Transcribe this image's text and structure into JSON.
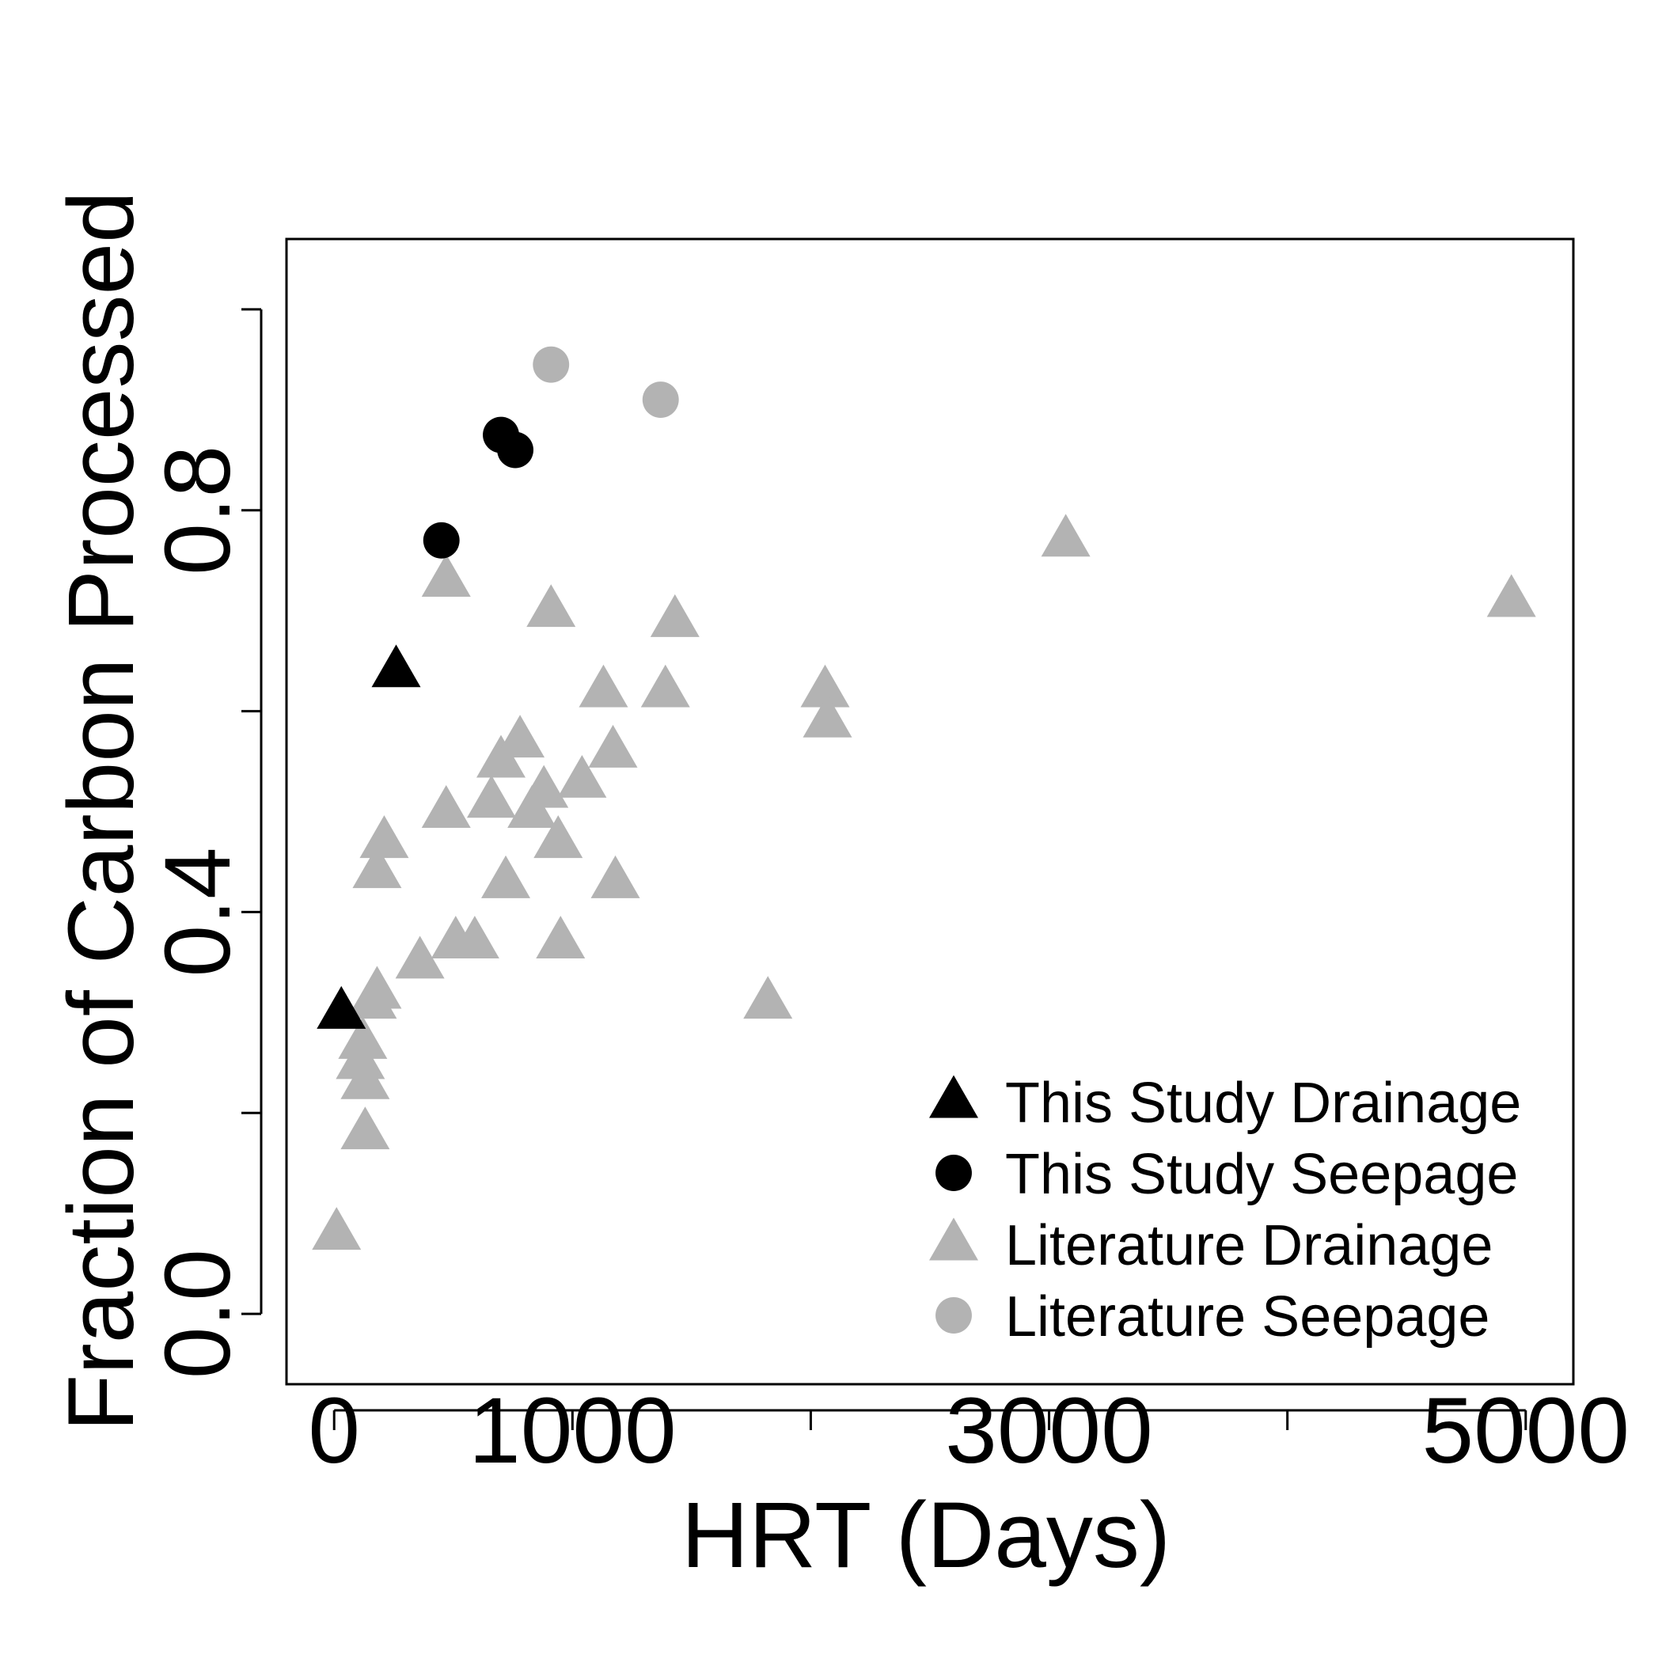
{
  "chart_data": {
    "type": "scatter",
    "xlabel": "HRT (Days)",
    "ylabel": "Fraction of Carbon Processed",
    "xlim": [
      -200,
      5200
    ],
    "ylim": [
      -0.07,
      1.07
    ],
    "x_ticks": [
      0,
      1000,
      2000,
      3000,
      4000,
      5000
    ],
    "x_tick_labels": [
      "0",
      "1000",
      "",
      "3000",
      "",
      "5000"
    ],
    "y_ticks": [
      0.0,
      0.2,
      0.4,
      0.6,
      0.8,
      1.0
    ],
    "y_tick_labels": [
      "0.0",
      "",
      "0.4",
      "",
      "0.8",
      ""
    ],
    "grid": false,
    "legend_position": "bottom-right",
    "series": [
      {
        "name": "This Study Drainage",
        "marker": "triangle",
        "color": "#000000",
        "points": [
          [
            30,
            0.3
          ],
          [
            260,
            0.64
          ]
        ]
      },
      {
        "name": "This Study Seepage",
        "marker": "circle",
        "color": "#000000",
        "points": [
          [
            450,
            0.77
          ],
          [
            700,
            0.875
          ],
          [
            760,
            0.86
          ]
        ]
      },
      {
        "name": "Literature Drainage",
        "marker": "triangle",
        "color": "#b3b3b3",
        "points": [
          [
            10,
            0.08
          ],
          [
            130,
            0.18
          ],
          [
            130,
            0.23
          ],
          [
            110,
            0.25
          ],
          [
            120,
            0.27
          ],
          [
            180,
            0.32
          ],
          [
            160,
            0.31
          ],
          [
            360,
            0.35
          ],
          [
            510,
            0.37
          ],
          [
            590,
            0.37
          ],
          [
            180,
            0.44
          ],
          [
            210,
            0.47
          ],
          [
            470,
            0.5
          ],
          [
            720,
            0.43
          ],
          [
            950,
            0.37
          ],
          [
            660,
            0.51
          ],
          [
            700,
            0.55
          ],
          [
            780,
            0.57
          ],
          [
            830,
            0.5
          ],
          [
            880,
            0.52
          ],
          [
            940,
            0.47
          ],
          [
            1040,
            0.53
          ],
          [
            1170,
            0.56
          ],
          [
            1180,
            0.43
          ],
          [
            1130,
            0.62
          ],
          [
            470,
            0.73
          ],
          [
            910,
            0.7
          ],
          [
            1430,
            0.69
          ],
          [
            1390,
            0.62
          ],
          [
            1820,
            0.31
          ],
          [
            2060,
            0.62
          ],
          [
            2070,
            0.59
          ],
          [
            3070,
            0.77
          ],
          [
            4940,
            0.71
          ]
        ]
      },
      {
        "name": "Literature Seepage",
        "marker": "circle",
        "color": "#b3b3b3",
        "points": [
          [
            910,
            0.945
          ],
          [
            1370,
            0.91
          ]
        ]
      }
    ]
  }
}
